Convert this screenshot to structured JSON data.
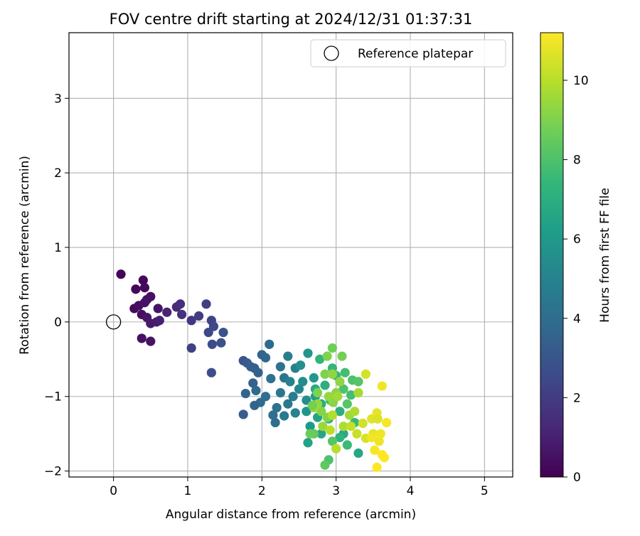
{
  "chart_data": {
    "type": "scatter",
    "title": "FOV centre drift starting at 2024/12/31 01:37:31",
    "xlabel": "Angular distance from reference (arcmin)",
    "ylabel": "Rotation from reference (arcmin)",
    "xlim": [
      -0.6,
      5.38
    ],
    "ylim": [
      -2.08,
      3.88
    ],
    "xticks": [
      0,
      1,
      2,
      3,
      4,
      5
    ],
    "yticks": [
      -2,
      -1,
      0,
      1,
      2,
      3
    ],
    "xtick_labels": [
      "0",
      "1",
      "2",
      "3",
      "4",
      "5"
    ],
    "ytick_labels": [
      "−2",
      "−1",
      "0",
      "1",
      "2",
      "3"
    ],
    "grid": true,
    "legend": {
      "position": "top-right",
      "entries": [
        "Reference platepar"
      ]
    },
    "colorbar": {
      "label": "Hours from first FF file",
      "range": [
        0,
        11.2
      ],
      "ticks": [
        0,
        2,
        4,
        6,
        8,
        10
      ],
      "tick_labels": [
        "0",
        "2",
        "4",
        "6",
        "8",
        "10"
      ],
      "colormap": "viridis",
      "stops": [
        "#440154",
        "#482878",
        "#3e4989",
        "#31688e",
        "#26828e",
        "#1f9e89",
        "#35b779",
        "#6ece58",
        "#b5de2b",
        "#fde725"
      ]
    },
    "reference": {
      "name": "Reference platepar",
      "x": 0,
      "y": 0
    },
    "series": [
      {
        "name": "",
        "points": [
          [
            0.1,
            0.64,
            0.1
          ],
          [
            0.3,
            0.44,
            0.2
          ],
          [
            0.4,
            0.56,
            0.2
          ],
          [
            0.42,
            0.46,
            0.3
          ],
          [
            0.28,
            0.18,
            0.3
          ],
          [
            0.34,
            0.22,
            0.4
          ],
          [
            0.38,
            0.1,
            0.4
          ],
          [
            0.45,
            0.3,
            0.5
          ],
          [
            0.5,
            0.34,
            0.5
          ],
          [
            0.42,
            0.26,
            0.6
          ],
          [
            0.6,
            0.18,
            0.6
          ],
          [
            0.45,
            0.06,
            0.7
          ],
          [
            0.5,
            -0.02,
            0.8
          ],
          [
            0.58,
            0.0,
            0.9
          ],
          [
            0.62,
            0.02,
            1.0
          ],
          [
            0.38,
            -0.22,
            0.5
          ],
          [
            0.5,
            -0.26,
            0.6
          ],
          [
            0.72,
            0.13,
            1.1
          ],
          [
            0.85,
            0.2,
            1.4
          ],
          [
            0.9,
            0.24,
            1.5
          ],
          [
            0.92,
            0.1,
            1.6
          ],
          [
            1.05,
            0.02,
            1.8
          ],
          [
            1.15,
            0.08,
            2.0
          ],
          [
            1.25,
            0.24,
            2.1
          ],
          [
            1.32,
            0.02,
            2.3
          ],
          [
            1.28,
            -0.14,
            2.4
          ],
          [
            1.35,
            -0.06,
            2.5
          ],
          [
            1.05,
            -0.35,
            2.2
          ],
          [
            1.33,
            -0.3,
            2.6
          ],
          [
            1.45,
            -0.28,
            2.8
          ],
          [
            1.48,
            -0.14,
            2.9
          ],
          [
            1.32,
            -0.68,
            2.7
          ],
          [
            1.75,
            -0.52,
            3.0
          ],
          [
            1.8,
            -0.55,
            3.2
          ],
          [
            1.85,
            -0.6,
            3.3
          ],
          [
            1.9,
            -0.62,
            3.4
          ],
          [
            1.88,
            -0.82,
            3.5
          ],
          [
            1.78,
            -0.96,
            3.6
          ],
          [
            1.95,
            -0.68,
            3.5
          ],
          [
            2.0,
            -0.44,
            3.6
          ],
          [
            2.05,
            -0.48,
            3.7
          ],
          [
            2.1,
            -0.3,
            3.8
          ],
          [
            1.92,
            -0.92,
            3.8
          ],
          [
            1.98,
            -1.08,
            3.9
          ],
          [
            1.9,
            -1.12,
            3.6
          ],
          [
            1.75,
            -1.24,
            3.3
          ],
          [
            2.05,
            -1.0,
            4.0
          ],
          [
            2.15,
            -1.25,
            4.1
          ],
          [
            2.18,
            -1.35,
            4.0
          ],
          [
            2.2,
            -1.15,
            4.2
          ],
          [
            2.25,
            -0.6,
            4.3
          ],
          [
            2.3,
            -0.75,
            4.4
          ],
          [
            2.12,
            -0.76,
            4.2
          ],
          [
            2.25,
            -0.95,
            4.5
          ],
          [
            2.35,
            -1.1,
            4.5
          ],
          [
            2.3,
            -1.26,
            4.6
          ],
          [
            2.42,
            -1.0,
            4.7
          ],
          [
            2.35,
            -0.46,
            4.8
          ],
          [
            2.45,
            -0.62,
            4.9
          ],
          [
            2.38,
            -0.8,
            5.0
          ],
          [
            2.45,
            -1.22,
            5.0
          ],
          [
            2.5,
            -0.9,
            5.2
          ],
          [
            2.55,
            -0.8,
            5.4
          ],
          [
            2.6,
            -1.05,
            5.5
          ],
          [
            2.52,
            -0.58,
            5.6
          ],
          [
            2.62,
            -0.42,
            5.8
          ],
          [
            2.6,
            -1.2,
            5.8
          ],
          [
            2.65,
            -1.4,
            6.0
          ],
          [
            2.7,
            -0.75,
            6.0
          ],
          [
            2.72,
            -1.0,
            6.2
          ],
          [
            2.62,
            -1.62,
            6.4
          ],
          [
            2.75,
            -1.28,
            6.5
          ],
          [
            2.8,
            -1.5,
            6.6
          ],
          [
            2.72,
            -0.9,
            6.8
          ],
          [
            2.8,
            -1.1,
            6.9
          ],
          [
            2.85,
            -0.85,
            7.0
          ],
          [
            2.9,
            -1.3,
            7.2
          ],
          [
            2.78,
            -0.5,
            7.3
          ],
          [
            2.95,
            -0.62,
            7.4
          ],
          [
            2.92,
            -1.05,
            7.5
          ],
          [
            3.0,
            -0.72,
            7.5
          ],
          [
            3.05,
            -1.2,
            7.0
          ],
          [
            3.1,
            -1.5,
            6.8
          ],
          [
            3.05,
            -1.55,
            7.2
          ],
          [
            3.15,
            -1.65,
            7.6
          ],
          [
            3.12,
            -0.68,
            7.8
          ],
          [
            3.2,
            -0.98,
            7.8
          ],
          [
            3.25,
            -1.35,
            7.5
          ],
          [
            3.1,
            -0.9,
            8.0
          ],
          [
            3.22,
            -0.78,
            8.0
          ],
          [
            3.15,
            -1.1,
            8.2
          ],
          [
            3.3,
            -1.76,
            6.6
          ],
          [
            3.3,
            -0.8,
            8.2
          ],
          [
            2.9,
            -1.85,
            8.0
          ],
          [
            2.95,
            -1.6,
            8.2
          ],
          [
            2.85,
            -1.92,
            8.4
          ],
          [
            2.7,
            -1.5,
            8.5
          ],
          [
            2.65,
            -1.5,
            8.6
          ],
          [
            2.95,
            -0.35,
            8.7
          ],
          [
            3.08,
            -0.46,
            8.8
          ],
          [
            2.88,
            -0.46,
            9.0
          ],
          [
            2.85,
            -0.7,
            9.0
          ],
          [
            2.75,
            -0.95,
            9.0
          ],
          [
            2.8,
            -1.2,
            9.1
          ],
          [
            2.88,
            -1.28,
            9.1
          ],
          [
            2.96,
            -1.08,
            9.2
          ],
          [
            3.0,
            -0.95,
            9.2
          ],
          [
            3.05,
            -0.8,
            9.3
          ],
          [
            2.95,
            -0.7,
            9.3
          ],
          [
            2.9,
            -1.0,
            9.4
          ],
          [
            2.75,
            -1.1,
            9.4
          ],
          [
            2.7,
            -1.15,
            9.5
          ],
          [
            2.68,
            -1.12,
            8.8
          ],
          [
            2.82,
            -1.4,
            9.5
          ],
          [
            3.02,
            -1.0,
            9.6
          ],
          [
            3.18,
            -1.25,
            9.6
          ],
          [
            3.3,
            -0.95,
            9.7
          ],
          [
            3.25,
            -1.2,
            9.8
          ],
          [
            3.1,
            -1.4,
            9.8
          ],
          [
            2.95,
            -1.25,
            9.9
          ],
          [
            2.92,
            -1.45,
            10.0
          ],
          [
            3.0,
            -1.7,
            10.0
          ],
          [
            3.2,
            -1.4,
            10.2
          ],
          [
            3.28,
            -1.5,
            10.3
          ],
          [
            3.36,
            -1.36,
            10.4
          ],
          [
            3.4,
            -0.7,
            10.5
          ],
          [
            3.4,
            -1.56,
            10.5
          ],
          [
            3.48,
            -1.3,
            10.7
          ],
          [
            3.5,
            -1.5,
            10.8
          ],
          [
            3.55,
            -1.22,
            10.8
          ],
          [
            3.58,
            -1.6,
            10.9
          ],
          [
            3.62,
            -0.86,
            11.0
          ],
          [
            3.6,
            -1.5,
            11.0
          ],
          [
            3.68,
            -1.35,
            11.1
          ],
          [
            3.52,
            -1.72,
            11.1
          ],
          [
            3.55,
            -1.95,
            11.2
          ],
          [
            3.62,
            -1.78,
            11.2
          ],
          [
            3.65,
            -1.82,
            11.2
          ],
          [
            3.48,
            -1.55,
            11.0
          ],
          [
            3.56,
            -1.3,
            10.6
          ]
        ]
      }
    ]
  }
}
